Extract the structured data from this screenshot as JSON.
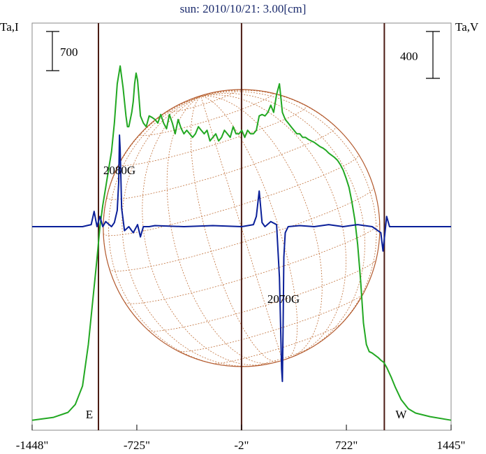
{
  "chart_data": {
    "type": "line",
    "title": "sun: 2010/10/21: 3.00[cm]",
    "left_axis_label": "Ta,I",
    "right_axis_label": "Ta,V",
    "scale_bar_left": "700",
    "scale_bar_right": "400",
    "x_ticks": [
      "-1448\"",
      "-725\"",
      "-2\"",
      "722\"",
      "1445\""
    ],
    "x_tick_values": [
      -1448,
      -725,
      -2,
      722,
      1445
    ],
    "xlim": [
      -1448,
      1445
    ],
    "limb_markers": {
      "east": "E",
      "west": "W",
      "east_x": -990,
      "west_x": 984
    },
    "annotations": [
      {
        "text": "2080G",
        "x": -845
      },
      {
        "text": "2070G",
        "x": 288
      }
    ],
    "series": [
      {
        "name": "Ta,I",
        "color": "#22a822",
        "x": [
          -1448,
          -1300,
          -1200,
          -1150,
          -1100,
          -1060,
          -1030,
          -1000,
          -980,
          -960,
          -940,
          -920,
          -900,
          -880,
          -860,
          -840,
          -820,
          -800,
          -790,
          -780,
          -770,
          -760,
          -750,
          -740,
          -730,
          -720,
          -710,
          -700,
          -690,
          -680,
          -660,
          -640,
          -620,
          -600,
          -580,
          -560,
          -540,
          -520,
          -500,
          -480,
          -460,
          -440,
          -420,
          -400,
          -380,
          -360,
          -340,
          -320,
          -300,
          -280,
          -260,
          -240,
          -220,
          -200,
          -180,
          -160,
          -140,
          -120,
          -100,
          -80,
          -60,
          -40,
          -20,
          0,
          20,
          40,
          60,
          80,
          100,
          120,
          140,
          160,
          180,
          200,
          220,
          240,
          260,
          280,
          300,
          320,
          340,
          360,
          380,
          400,
          420,
          440,
          460,
          480,
          500,
          520,
          540,
          560,
          580,
          600,
          620,
          640,
          660,
          680,
          700,
          720,
          740,
          760,
          780,
          800,
          820,
          840,
          860,
          880,
          900,
          920,
          940,
          960,
          980,
          1000,
          1030,
          1060,
          1100,
          1150,
          1200,
          1300,
          1445
        ],
        "y": [
          40,
          80,
          150,
          260,
          520,
          1100,
          1700,
          2300,
          2750,
          3050,
          3300,
          3550,
          3800,
          4200,
          4750,
          5000,
          4700,
          4300,
          4150,
          4150,
          4250,
          4350,
          4500,
          4750,
          4900,
          4800,
          4550,
          4300,
          4250,
          4200,
          4150,
          4300,
          4280,
          4250,
          4200,
          4320,
          4200,
          4120,
          4320,
          4200,
          4050,
          4250,
          4130,
          4050,
          4100,
          4050,
          4000,
          4050,
          4150,
          4100,
          4050,
          4100,
          3950,
          4000,
          4050,
          3950,
          4000,
          4100,
          4050,
          4000,
          4150,
          4050,
          4050,
          4100,
          4000,
          4100,
          4050,
          4050,
          4100,
          4300,
          4320,
          4300,
          4350,
          4450,
          4350,
          4600,
          4750,
          4350,
          4250,
          4200,
          4150,
          4100,
          4050,
          4050,
          4000,
          4000,
          3970,
          3950,
          3930,
          3900,
          3870,
          3850,
          3820,
          3780,
          3750,
          3720,
          3680,
          3620,
          3540,
          3430,
          3300,
          3100,
          2850,
          2500,
          2000,
          1400,
          1100,
          1000,
          980,
          950,
          920,
          880,
          850,
          780,
          650,
          500,
          330,
          200,
          140,
          90,
          40
        ]
      },
      {
        "name": "Ta,V",
        "color": "#0a1f99",
        "x": [
          -1448,
          -1100,
          -1040,
          -1020,
          -1000,
          -980,
          -960,
          -940,
          -900,
          -880,
          -860,
          -850,
          -845,
          -840,
          -830,
          -810,
          -780,
          -750,
          -720,
          -700,
          -680,
          -640,
          -600,
          -400,
          -200,
          0,
          80,
          100,
          120,
          140,
          160,
          200,
          240,
          260,
          275,
          280,
          285,
          290,
          300,
          320,
          400,
          500,
          600,
          700,
          800,
          900,
          960,
          975,
          990,
          1000,
          1020,
          1100,
          1445
        ],
        "y": [
          0,
          0,
          10,
          75,
          0,
          50,
          0,
          25,
          0,
          20,
          80,
          220,
          450,
          380,
          90,
          -20,
          0,
          -30,
          10,
          -50,
          0,
          0,
          5,
          0,
          5,
          0,
          10,
          50,
          175,
          20,
          0,
          25,
          10,
          -250,
          -700,
          -760,
          -500,
          -150,
          -30,
          0,
          5,
          0,
          10,
          0,
          10,
          0,
          -30,
          -120,
          -20,
          50,
          0,
          0,
          0
        ]
      }
    ],
    "ylim_i": [
      -100,
      5600
    ],
    "ylim_v": [
      -1000,
      1000
    ]
  }
}
